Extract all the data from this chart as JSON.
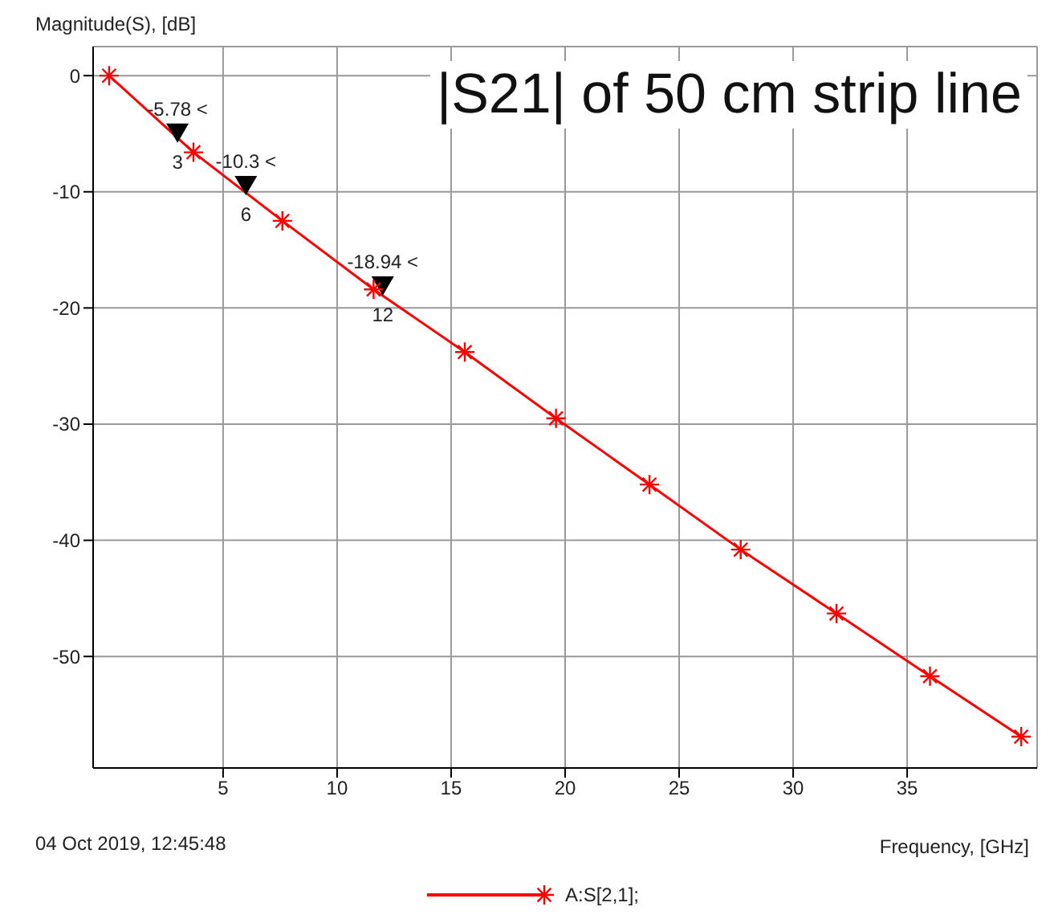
{
  "chart_data": {
    "type": "line",
    "title": "|S21| of 50 cm strip line",
    "xlabel": "Frequency, [GHz]",
    "ylabel": "Magnitude(S), [dB]",
    "x": [
      0,
      3.7,
      7.6,
      11.6,
      15.6,
      19.6,
      23.7,
      27.7,
      31.9,
      36,
      40
    ],
    "series": [
      {
        "name": "A:S[2,1];",
        "color": "#ff0000",
        "values": [
          0,
          -6.6,
          -12.5,
          -18.4,
          -23.8,
          -29.5,
          -35.2,
          -40.8,
          -46.3,
          -51.7,
          -56.9
        ]
      }
    ],
    "xlim": [
      -0.7,
      40.7
    ],
    "ylim": [
      -59.6,
      2.5
    ],
    "xticks": [
      5,
      10,
      15,
      20,
      25,
      30,
      35
    ],
    "yticks": [
      0,
      -10,
      -20,
      -30,
      -40,
      -50
    ],
    "grid": true,
    "legend": "bottom",
    "marker": "cross",
    "line_style": "solid",
    "annotations": [
      {
        "text": "-5.78 <",
        "x": 3,
        "y": -5.78
      },
      {
        "text": "3",
        "x": 3,
        "y": -5.78
      },
      {
        "text": "-10.3 <",
        "x": 6,
        "y": -10.3
      },
      {
        "text": "6",
        "x": 6,
        "y": -10.3
      },
      {
        "text": "-18.94 <",
        "x": 12,
        "y": -18.94
      },
      {
        "text": "12",
        "x": 12,
        "y": -18.94
      },
      "04 Oct 2019, 12:45:48"
    ]
  }
}
